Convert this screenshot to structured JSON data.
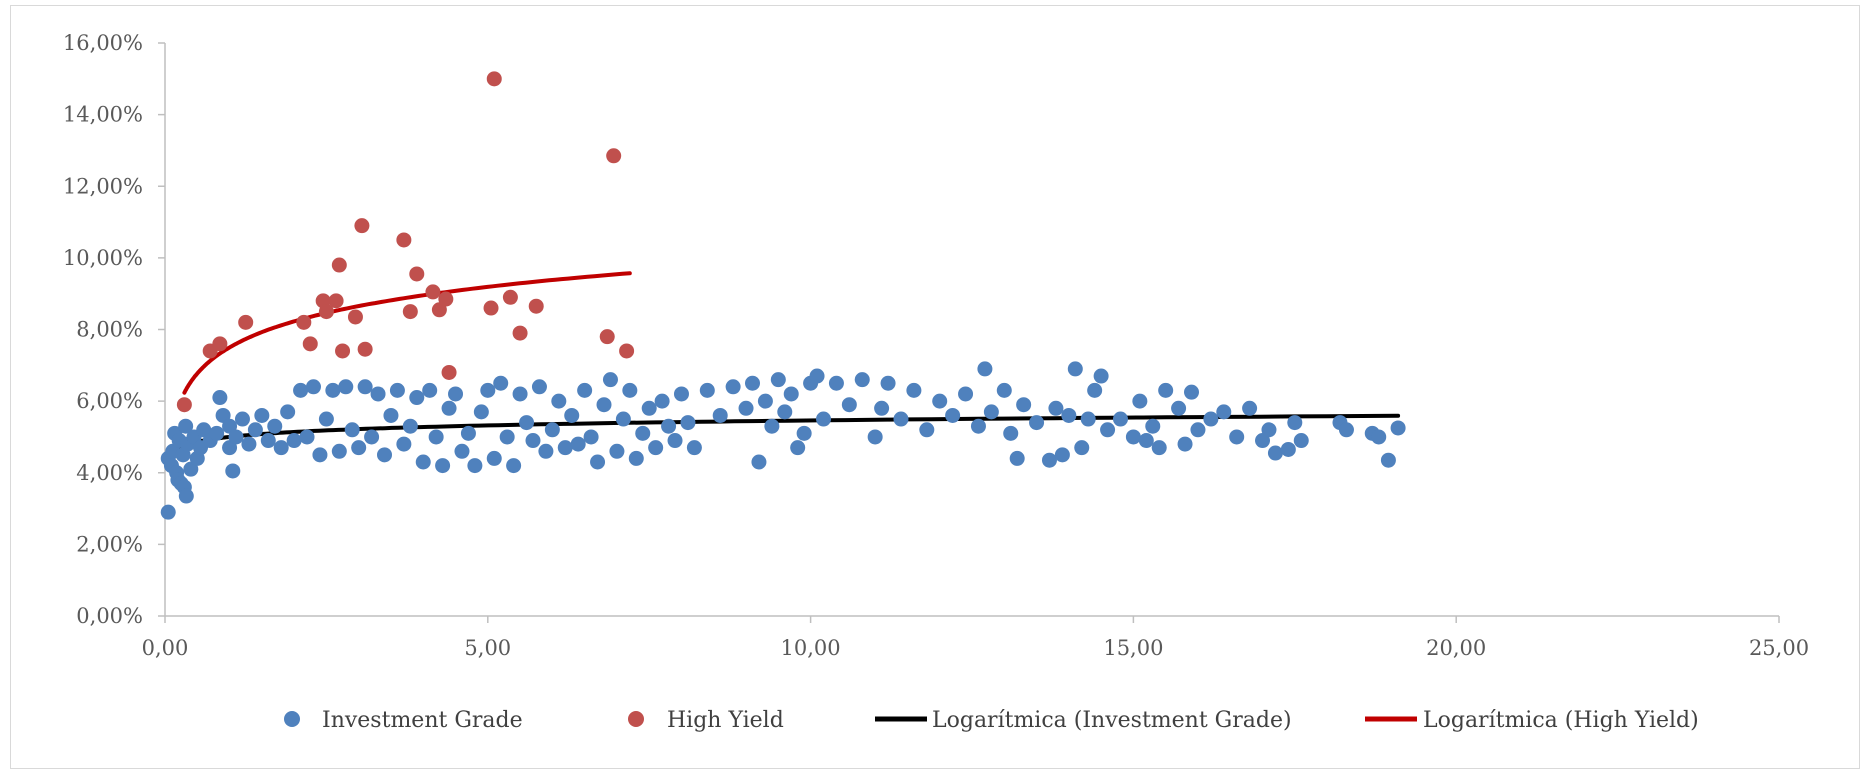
{
  "chart_data": {
    "type": "scatter",
    "xlim": [
      0,
      25
    ],
    "ylim": [
      0,
      16
    ],
    "x_ticks": [
      "0,00",
      "5,00",
      "10,00",
      "15,00",
      "20,00",
      "25,00"
    ],
    "y_ticks": [
      "0,00%",
      "2,00%",
      "4,00%",
      "6,00%",
      "8,00%",
      "10,00%",
      "12,00%",
      "14,00%",
      "16,00%"
    ],
    "grid": false,
    "legend_position": "bottom",
    "series": [
      {
        "name": "Investment Grade",
        "kind": "scatter",
        "color": "#4f81bd",
        "points": [
          [
            0.05,
            2.9
          ],
          [
            0.05,
            4.4
          ],
          [
            0.1,
            4.2
          ],
          [
            0.12,
            4.6
          ],
          [
            0.15,
            5.1
          ],
          [
            0.18,
            4.0
          ],
          [
            0.2,
            3.8
          ],
          [
            0.22,
            4.9
          ],
          [
            0.25,
            3.7
          ],
          [
            0.28,
            4.5
          ],
          [
            0.3,
            3.6
          ],
          [
            0.32,
            5.3
          ],
          [
            0.33,
            3.35
          ],
          [
            0.35,
            4.8
          ],
          [
            0.4,
            4.1
          ],
          [
            0.45,
            5.0
          ],
          [
            0.5,
            4.4
          ],
          [
            0.55,
            4.7
          ],
          [
            0.6,
            5.2
          ],
          [
            0.7,
            4.9
          ],
          [
            0.8,
            5.1
          ],
          [
            0.85,
            6.1
          ],
          [
            0.9,
            5.6
          ],
          [
            1.0,
            4.7
          ],
          [
            1.0,
            5.3
          ],
          [
            1.05,
            4.05
          ],
          [
            1.1,
            5.0
          ],
          [
            1.2,
            5.5
          ],
          [
            1.3,
            4.8
          ],
          [
            1.4,
            5.2
          ],
          [
            1.5,
            5.6
          ],
          [
            1.6,
            4.9
          ],
          [
            1.7,
            5.3
          ],
          [
            1.8,
            4.7
          ],
          [
            1.9,
            5.7
          ],
          [
            2.0,
            4.9
          ],
          [
            2.1,
            6.3
          ],
          [
            2.2,
            5.0
          ],
          [
            2.3,
            6.4
          ],
          [
            2.4,
            4.5
          ],
          [
            2.5,
            5.5
          ],
          [
            2.6,
            6.3
          ],
          [
            2.7,
            4.6
          ],
          [
            2.8,
            6.4
          ],
          [
            2.9,
            5.2
          ],
          [
            3.0,
            4.7
          ],
          [
            3.1,
            6.4
          ],
          [
            3.2,
            5.0
          ],
          [
            3.3,
            6.2
          ],
          [
            3.4,
            4.5
          ],
          [
            3.5,
            5.6
          ],
          [
            3.6,
            6.3
          ],
          [
            3.7,
            4.8
          ],
          [
            3.8,
            5.3
          ],
          [
            3.9,
            6.1
          ],
          [
            4.0,
            4.3
          ],
          [
            4.1,
            6.3
          ],
          [
            4.2,
            5.0
          ],
          [
            4.3,
            4.2
          ],
          [
            4.4,
            5.8
          ],
          [
            4.5,
            6.2
          ],
          [
            4.6,
            4.6
          ],
          [
            4.7,
            5.1
          ],
          [
            4.8,
            4.2
          ],
          [
            4.9,
            5.7
          ],
          [
            5.0,
            6.3
          ],
          [
            5.1,
            4.4
          ],
          [
            5.2,
            6.5
          ],
          [
            5.3,
            5.0
          ],
          [
            5.4,
            4.2
          ],
          [
            5.5,
            6.2
          ],
          [
            5.6,
            5.4
          ],
          [
            5.7,
            4.9
          ],
          [
            5.8,
            6.4
          ],
          [
            5.9,
            4.6
          ],
          [
            6.0,
            5.2
          ],
          [
            6.1,
            6.0
          ],
          [
            6.2,
            4.7
          ],
          [
            6.3,
            5.6
          ],
          [
            6.4,
            4.8
          ],
          [
            6.5,
            6.3
          ],
          [
            6.6,
            5.0
          ],
          [
            6.7,
            4.3
          ],
          [
            6.8,
            5.9
          ],
          [
            6.9,
            6.6
          ],
          [
            7.0,
            4.6
          ],
          [
            7.1,
            5.5
          ],
          [
            7.2,
            6.3
          ],
          [
            7.3,
            4.4
          ],
          [
            7.4,
            5.1
          ],
          [
            7.5,
            5.8
          ],
          [
            7.6,
            4.7
          ],
          [
            7.7,
            6.0
          ],
          [
            7.8,
            5.3
          ],
          [
            7.9,
            4.9
          ],
          [
            8.0,
            6.2
          ],
          [
            8.1,
            5.4
          ],
          [
            8.2,
            4.7
          ],
          [
            8.4,
            6.3
          ],
          [
            8.6,
            5.6
          ],
          [
            8.8,
            6.4
          ],
          [
            9.0,
            5.8
          ],
          [
            9.1,
            6.5
          ],
          [
            9.2,
            4.3
          ],
          [
            9.3,
            6.0
          ],
          [
            9.4,
            5.3
          ],
          [
            9.5,
            6.6
          ],
          [
            9.6,
            5.7
          ],
          [
            9.7,
            6.2
          ],
          [
            9.8,
            4.7
          ],
          [
            9.9,
            5.1
          ],
          [
            10.0,
            6.5
          ],
          [
            10.1,
            6.7
          ],
          [
            10.2,
            5.5
          ],
          [
            10.4,
            6.5
          ],
          [
            10.6,
            5.9
          ],
          [
            10.8,
            6.6
          ],
          [
            11.0,
            5.0
          ],
          [
            11.1,
            5.8
          ],
          [
            11.2,
            6.5
          ],
          [
            11.4,
            5.5
          ],
          [
            11.6,
            6.3
          ],
          [
            11.8,
            5.2
          ],
          [
            12.0,
            6.0
          ],
          [
            12.2,
            5.6
          ],
          [
            12.4,
            6.2
          ],
          [
            12.6,
            5.3
          ],
          [
            12.7,
            6.9
          ],
          [
            12.8,
            5.7
          ],
          [
            13.0,
            6.3
          ],
          [
            13.1,
            5.1
          ],
          [
            13.2,
            4.4
          ],
          [
            13.3,
            5.9
          ],
          [
            13.5,
            5.4
          ],
          [
            13.7,
            4.35
          ],
          [
            13.8,
            5.8
          ],
          [
            13.9,
            4.5
          ],
          [
            14.0,
            5.6
          ],
          [
            14.1,
            6.9
          ],
          [
            14.2,
            4.7
          ],
          [
            14.3,
            5.5
          ],
          [
            14.4,
            6.3
          ],
          [
            14.5,
            6.7
          ],
          [
            14.6,
            5.2
          ],
          [
            14.8,
            5.5
          ],
          [
            15.0,
            5.0
          ],
          [
            15.1,
            6.0
          ],
          [
            15.2,
            4.9
          ],
          [
            15.3,
            5.3
          ],
          [
            15.4,
            4.7
          ],
          [
            15.5,
            6.3
          ],
          [
            15.7,
            5.8
          ],
          [
            15.8,
            4.8
          ],
          [
            15.9,
            6.25
          ],
          [
            16.0,
            5.2
          ],
          [
            16.2,
            5.5
          ],
          [
            16.4,
            5.7
          ],
          [
            16.6,
            5.0
          ],
          [
            16.8,
            5.8
          ],
          [
            17.0,
            4.9
          ],
          [
            17.1,
            5.2
          ],
          [
            17.2,
            4.55
          ],
          [
            17.4,
            4.65
          ],
          [
            17.5,
            5.4
          ],
          [
            17.6,
            4.9
          ],
          [
            18.2,
            5.4
          ],
          [
            18.3,
            5.2
          ],
          [
            18.7,
            5.1
          ],
          [
            18.8,
            5.0
          ],
          [
            18.95,
            4.35
          ],
          [
            19.1,
            5.25
          ]
        ]
      },
      {
        "name": "High Yield",
        "kind": "scatter",
        "color": "#c0504d",
        "points": [
          [
            0.3,
            5.9
          ],
          [
            0.7,
            7.4
          ],
          [
            0.85,
            7.6
          ],
          [
            1.25,
            8.2
          ],
          [
            2.15,
            8.2
          ],
          [
            2.25,
            7.6
          ],
          [
            2.45,
            8.8
          ],
          [
            2.5,
            8.5
          ],
          [
            2.65,
            8.8
          ],
          [
            2.7,
            9.8
          ],
          [
            2.75,
            7.4
          ],
          [
            2.95,
            8.35
          ],
          [
            3.05,
            10.9
          ],
          [
            3.1,
            7.45
          ],
          [
            3.7,
            10.5
          ],
          [
            3.8,
            8.5
          ],
          [
            3.9,
            9.55
          ],
          [
            4.15,
            9.05
          ],
          [
            4.25,
            8.55
          ],
          [
            4.35,
            8.85
          ],
          [
            4.4,
            6.8
          ],
          [
            5.05,
            8.6
          ],
          [
            5.1,
            15.0
          ],
          [
            5.35,
            8.9
          ],
          [
            5.5,
            7.9
          ],
          [
            5.75,
            8.65
          ],
          [
            6.85,
            7.8
          ],
          [
            6.95,
            12.85
          ],
          [
            7.15,
            7.4
          ]
        ]
      },
      {
        "name": "Logarítmica (Investment Grade)",
        "kind": "line",
        "color": "#000000",
        "x_range": [
          0.05,
          19.1
        ],
        "a": 5.0,
        "b": 0.2
      },
      {
        "name": "Logarítmica (High Yield)",
        "kind": "line",
        "color": "#c00000",
        "x_range": [
          0.3,
          7.2
        ],
        "a": 7.5,
        "b": 1.05
      }
    ]
  }
}
